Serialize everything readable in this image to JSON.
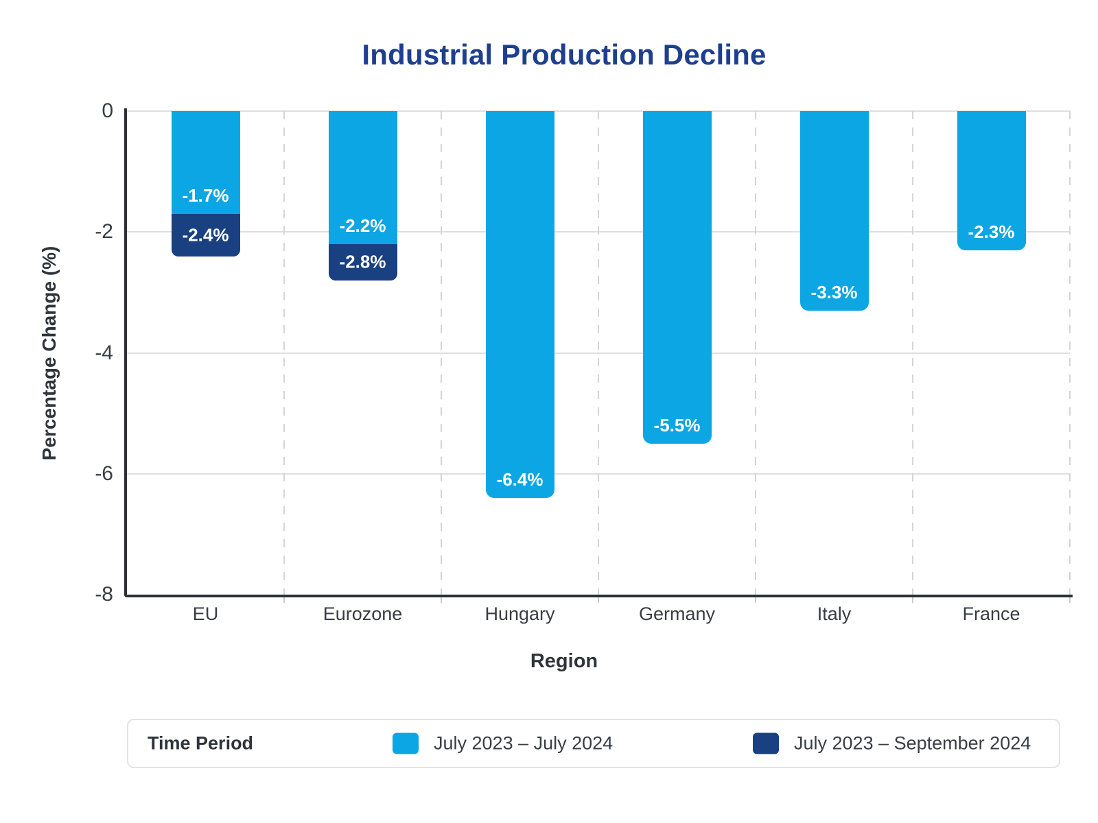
{
  "title": "Industrial Production Decline",
  "colors": {
    "light_blue": "#0BA6E3",
    "dark_blue": "#194080",
    "title_blue": "#1E3F8F",
    "axis": "#2D3137"
  },
  "chart_data": {
    "type": "bar",
    "title": "Industrial Production Decline",
    "xlabel": "Region",
    "ylabel": "Percentage Change (%)",
    "categories": [
      "EU",
      "Eurozone",
      "Hungary",
      "Germany",
      "Italy",
      "France"
    ],
    "series": [
      {
        "name": "July 2023 – July 2024",
        "color": "#0BA6E3",
        "values": [
          -1.7,
          -2.2,
          -6.4,
          -5.5,
          -3.3,
          -2.3
        ],
        "labels": [
          "-1.7%",
          "-2.2%",
          "-6.4%",
          "-5.5%",
          "-3.3%",
          "-2.3%"
        ]
      },
      {
        "name": "July 2023 – September 2024",
        "color": "#194080",
        "values": [
          -2.4,
          -2.8,
          null,
          null,
          null,
          null
        ],
        "labels": [
          "-2.4%",
          "-2.8%",
          null,
          null,
          null,
          null
        ]
      }
    ],
    "ylim": [
      -8,
      0
    ],
    "yticks": [
      0,
      -2,
      -4,
      -6,
      -8
    ],
    "ytick_labels": [
      "0",
      "-2",
      "-4",
      "-6",
      "-8"
    ],
    "grid": true,
    "legend_position": "bottom",
    "bar_style": "overlaid-total (second series drawn behind first; visible part is the extension)"
  },
  "legend": {
    "title": "Time Period",
    "items": [
      {
        "label": "July 2023 – July 2024",
        "color": "#0BA6E3"
      },
      {
        "label": "July 2023 – September 2024",
        "color": "#194080"
      }
    ]
  }
}
